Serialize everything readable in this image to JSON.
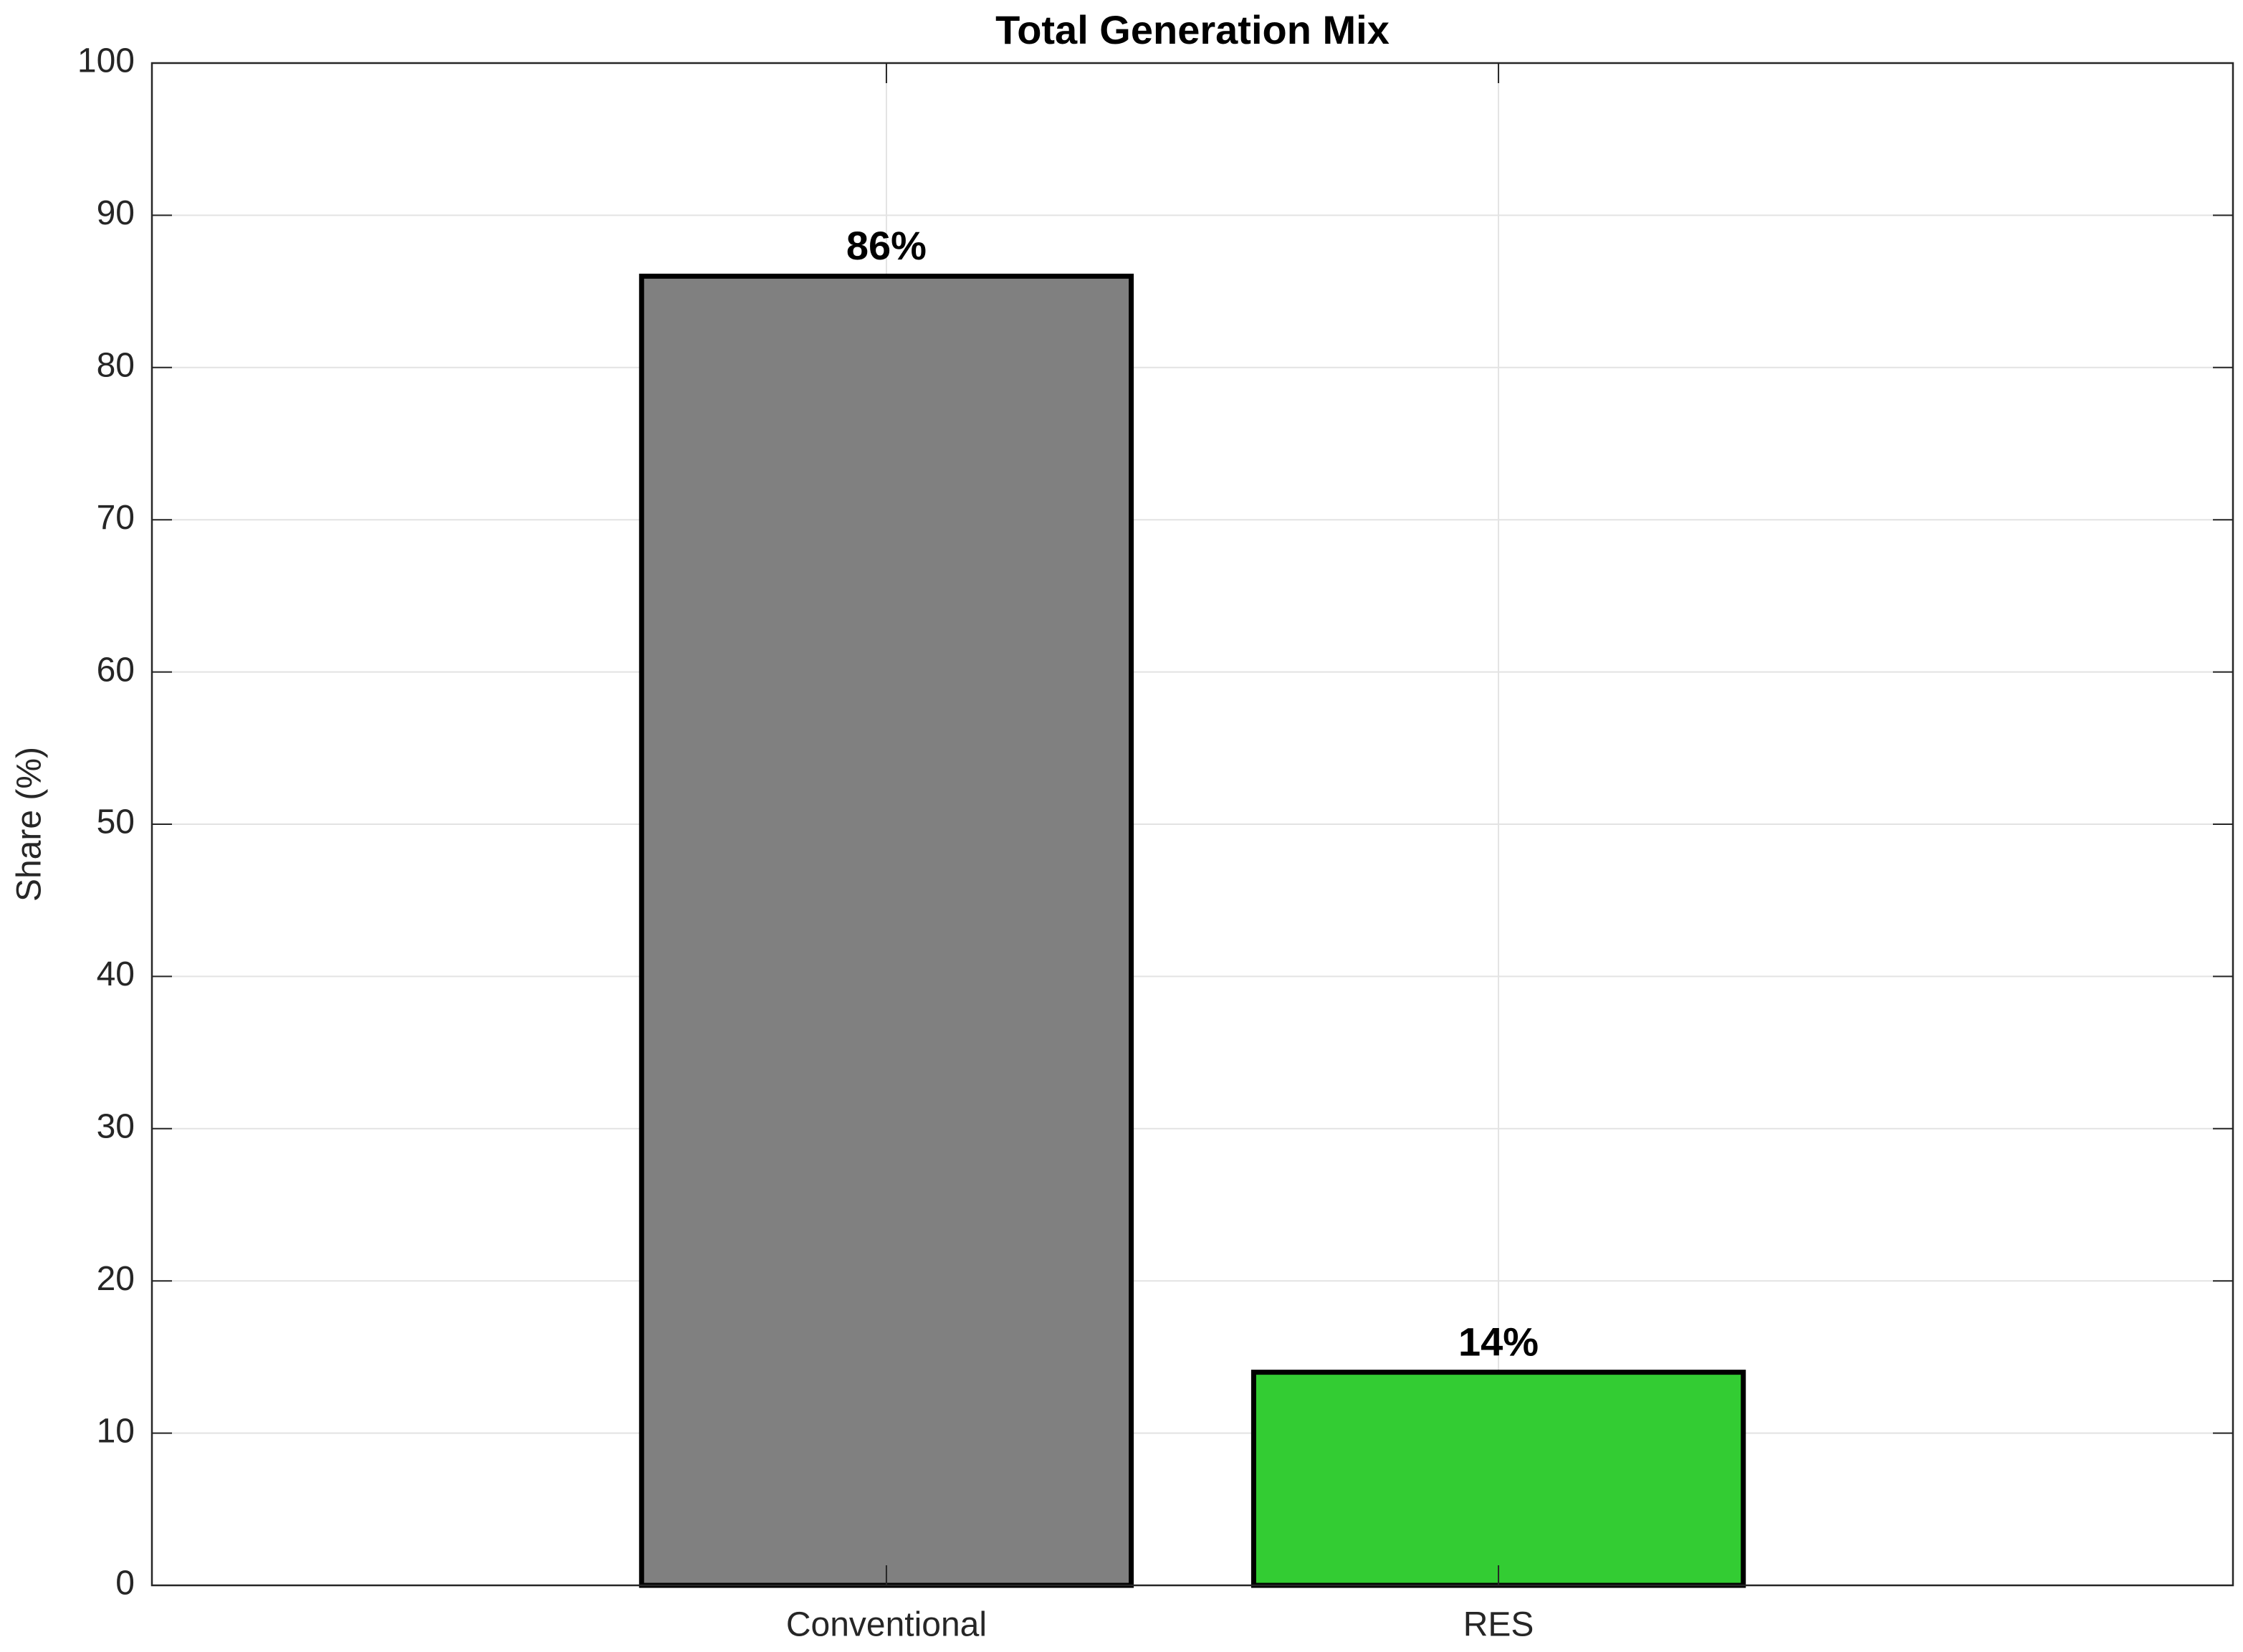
{
  "chart_data": {
    "type": "bar",
    "title": "Total Generation Mix",
    "ylabel": "Share (%)",
    "categories": [
      "Conventional",
      "RES"
    ],
    "values": [
      86,
      14
    ],
    "value_labels": [
      "86%",
      "14%"
    ],
    "colors": [
      "#808080",
      "#33cc33"
    ],
    "ylim": [
      0,
      100
    ],
    "yticks": [
      0,
      10,
      20,
      30,
      40,
      50,
      60,
      70,
      80,
      90,
      100
    ],
    "grid": true
  }
}
